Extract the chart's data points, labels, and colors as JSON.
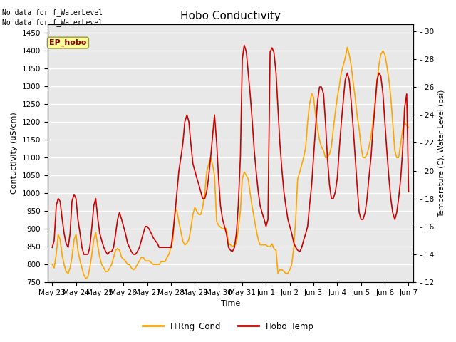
{
  "title": "Hobo Conductivity",
  "xlabel": "Time",
  "ylabel_left": "Contuctivity (uS/cm)",
  "ylabel_right": "Temperature (C), Water Level (psi)",
  "no_data_text1": "No data for f_WaterLevel",
  "no_data_text2": "No data for f_WaterLevel",
  "ep_hobo_label": "EP_hobo",
  "ylim_left": [
    750,
    1475
  ],
  "ylim_right": [
    12,
    30.5
  ],
  "xtick_labels": [
    "May 23",
    "May 24",
    "May 25",
    "May 26",
    "May 27",
    "May 28",
    "May 29",
    "May 30",
    "May 31",
    "Jun 1",
    "Jun 2",
    "Jun 3",
    "Jun 4",
    "Jun 5",
    "Jun 6",
    "Jun 7"
  ],
  "bg_color": "#e8e8e8",
  "grid_color": "white",
  "cond_color": "#FFA500",
  "temp_color": "#CC0000",
  "legend_entries": [
    "HiRng_Cond",
    "Hobo_Temp"
  ],
  "cond_x": [
    0.0,
    0.08,
    0.17,
    0.25,
    0.33,
    0.42,
    0.5,
    0.58,
    0.67,
    0.75,
    0.83,
    0.92,
    1.0,
    1.08,
    1.17,
    1.25,
    1.33,
    1.42,
    1.5,
    1.58,
    1.67,
    1.75,
    1.83,
    1.92,
    2.0,
    2.08,
    2.17,
    2.25,
    2.33,
    2.42,
    2.5,
    2.58,
    2.67,
    2.75,
    2.83,
    2.92,
    3.0,
    3.08,
    3.17,
    3.25,
    3.33,
    3.42,
    3.5,
    3.58,
    3.67,
    3.75,
    3.83,
    3.92,
    4.0,
    4.08,
    4.17,
    4.25,
    4.33,
    4.42,
    4.5,
    4.58,
    4.67,
    4.75,
    4.83,
    4.92,
    5.0,
    5.08,
    5.17,
    5.25,
    5.33,
    5.42,
    5.5,
    5.58,
    5.67,
    5.75,
    5.83,
    5.92,
    6.0,
    6.08,
    6.17,
    6.25,
    6.33,
    6.42,
    6.5,
    6.58,
    6.67,
    6.75,
    6.83,
    6.92,
    7.0,
    7.08,
    7.17,
    7.25,
    7.33,
    7.42,
    7.5,
    7.58,
    7.67,
    7.75,
    7.83,
    7.92,
    8.0,
    8.08,
    8.17,
    8.25,
    8.33,
    8.42,
    8.5,
    8.58,
    8.67,
    8.75,
    8.83,
    8.92,
    9.0,
    9.08,
    9.17,
    9.25,
    9.33,
    9.42,
    9.5,
    9.58,
    9.67,
    9.75,
    9.83,
    9.92,
    10.0,
    10.08,
    10.17,
    10.25,
    10.33,
    10.42,
    10.5,
    10.58,
    10.67,
    10.75,
    10.83,
    10.92,
    11.0,
    11.08,
    11.17,
    11.25,
    11.33,
    11.42,
    11.5,
    11.58,
    11.67,
    11.75,
    11.83,
    11.92,
    12.0,
    12.08,
    12.17,
    12.25,
    12.33,
    12.42,
    12.5,
    12.58,
    12.67,
    12.75,
    12.83,
    12.92,
    13.0,
    13.08,
    13.17,
    13.25,
    13.33,
    13.42,
    13.5,
    13.58,
    13.67,
    13.75,
    13.83,
    13.92,
    14.0,
    14.08,
    14.17,
    14.25,
    14.33,
    14.42,
    14.5,
    14.58,
    14.67,
    14.75,
    14.83,
    14.92,
    15.0
  ],
  "cond_data": [
    800,
    790,
    830,
    885,
    870,
    825,
    800,
    780,
    775,
    790,
    820,
    870,
    885,
    840,
    810,
    790,
    770,
    760,
    765,
    790,
    830,
    870,
    890,
    850,
    820,
    800,
    790,
    780,
    780,
    790,
    800,
    820,
    840,
    845,
    840,
    820,
    815,
    810,
    800,
    800,
    790,
    785,
    790,
    800,
    810,
    820,
    820,
    810,
    810,
    810,
    805,
    800,
    800,
    800,
    800,
    808,
    808,
    808,
    820,
    830,
    850,
    870,
    955,
    950,
    920,
    890,
    865,
    855,
    860,
    870,
    900,
    940,
    960,
    950,
    940,
    940,
    960,
    1000,
    1060,
    1080,
    1100,
    1080,
    1050,
    920,
    910,
    905,
    900,
    900,
    900,
    860,
    855,
    850,
    855,
    860,
    900,
    950,
    1040,
    1060,
    1050,
    1040,
    1000,
    960,
    930,
    900,
    870,
    855,
    855,
    855,
    855,
    850,
    850,
    858,
    845,
    840,
    775,
    785,
    785,
    780,
    775,
    775,
    785,
    800,
    850,
    930,
    1040,
    1060,
    1080,
    1100,
    1130,
    1200,
    1250,
    1280,
    1270,
    1220,
    1180,
    1150,
    1130,
    1120,
    1100,
    1100,
    1110,
    1130,
    1180,
    1230,
    1270,
    1300,
    1340,
    1360,
    1380,
    1410,
    1390,
    1360,
    1310,
    1270,
    1220,
    1180,
    1130,
    1100,
    1100,
    1110,
    1130,
    1160,
    1200,
    1250,
    1310,
    1360,
    1390,
    1400,
    1390,
    1360,
    1320,
    1270,
    1200,
    1120,
    1100,
    1100,
    1140,
    1180,
    1200,
    1190,
    1185
  ],
  "temp_data": [
    14.5,
    15.0,
    17.5,
    18.0,
    17.8,
    16.5,
    15.5,
    14.8,
    14.5,
    15.5,
    17.8,
    18.3,
    18.0,
    16.5,
    15.5,
    14.5,
    14.0,
    14.0,
    14.0,
    14.5,
    16.0,
    17.5,
    18.0,
    16.5,
    15.5,
    15.0,
    14.5,
    14.2,
    14.0,
    14.2,
    14.2,
    14.5,
    15.5,
    16.5,
    17.0,
    16.5,
    16.0,
    15.5,
    14.8,
    14.5,
    14.2,
    14.0,
    14.0,
    14.2,
    14.5,
    15.0,
    15.5,
    16.0,
    16.0,
    15.8,
    15.5,
    15.2,
    15.0,
    14.8,
    14.5,
    14.5,
    14.5,
    14.5,
    14.5,
    14.5,
    14.5,
    15.5,
    17.0,
    18.5,
    20.0,
    21.0,
    22.0,
    23.5,
    24.0,
    23.5,
    22.0,
    20.5,
    20.0,
    19.5,
    19.0,
    18.5,
    18.0,
    18.0,
    18.5,
    19.5,
    21.0,
    22.5,
    24.0,
    22.0,
    19.5,
    17.5,
    16.5,
    16.0,
    15.5,
    14.5,
    14.3,
    14.2,
    14.5,
    15.5,
    17.5,
    21.0,
    28.0,
    29.0,
    28.5,
    27.0,
    25.5,
    23.5,
    21.5,
    20.0,
    18.5,
    17.5,
    17.0,
    16.5,
    16.0,
    16.5,
    28.5,
    28.8,
    28.5,
    27.0,
    24.5,
    22.0,
    20.0,
    18.5,
    17.5,
    16.5,
    16.0,
    15.5,
    14.8,
    14.5,
    14.3,
    14.2,
    14.5,
    15.0,
    15.5,
    16.0,
    17.5,
    19.0,
    21.0,
    23.0,
    25.0,
    26.0,
    26.0,
    25.5,
    23.5,
    21.0,
    19.0,
    18.0,
    18.0,
    18.5,
    19.5,
    21.5,
    23.5,
    25.0,
    26.5,
    27.0,
    26.5,
    25.0,
    23.0,
    21.0,
    19.0,
    17.0,
    16.5,
    16.5,
    17.0,
    18.0,
    19.5,
    21.0,
    23.0,
    24.5,
    26.5,
    27.0,
    26.8,
    25.5,
    23.5,
    21.5,
    19.5,
    18.0,
    17.0,
    16.5,
    17.0,
    18.0,
    19.5,
    21.5,
    24.5,
    25.5,
    18.5
  ]
}
